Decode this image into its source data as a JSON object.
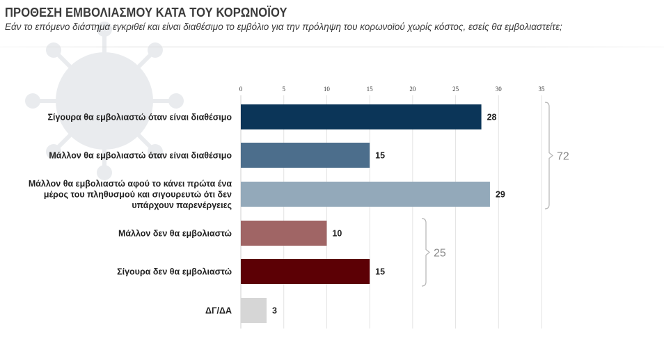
{
  "header": {
    "title": "ΠΡΟΘΕΣΗ ΕΜΒΟΛΙΑΣΜΟΥ ΚΑΤΑ ΤΟΥ ΚΟΡΩΝΟΪΟΥ",
    "subtitle": "Εάν το επόμενο διάστημα εγκριθεί και είναι διαθέσιμο το εμβόλιο για την πρόληψη του κορωνοϊού χωρίς κόστος, εσείς θα εμβολιαστείτε;"
  },
  "chart_data": {
    "type": "bar",
    "orientation": "horizontal",
    "title": "ΠΡΟΘΕΣΗ ΕΜΒΟΛΙΑΣΜΟΥ ΚΑΤΑ ΤΟΥ ΚΟΡΩΝΟΪΟΥ",
    "subtitle": "Εάν το επόμενο διάστημα εγκριθεί και είναι διαθέσιμο το εμβόλιο για την πρόληψη του κορωνοϊού χωρίς κόστος, εσείς θα εμβολιαστείτε;",
    "axis_position": "top",
    "xlim": [
      0,
      35
    ],
    "xticks": [
      0,
      5,
      10,
      15,
      20,
      25,
      30,
      35
    ],
    "grid": true,
    "categories": [
      [
        "Σίγουρα θα εμβολιαστώ όταν είναι διαθέσιμο"
      ],
      [
        "Μάλλον θα εμβολιαστώ όταν είναι διαθέσιμο"
      ],
      [
        "Μάλλον θα εμβολιαστώ αφού το κάνει πρώτα ένα",
        "μέρος του πληθυσμού και σιγουρευτώ ότι δεν",
        "υπάρχουν παρενέργειες"
      ],
      [
        "Μάλλον δεν θα εμβολιαστώ"
      ],
      [
        "Σίγουρα δεν θα εμβολιαστώ"
      ],
      [
        "ΔΓ/ΔΑ"
      ]
    ],
    "values": [
      28,
      15,
      29,
      10,
      15,
      3
    ],
    "colors": [
      "#0b3558",
      "#4c6e8c",
      "#93a9ba",
      "#a06565",
      "#5c0005",
      "#d6d6d6"
    ],
    "groups": [
      {
        "label": "72",
        "from": 0,
        "to": 2
      },
      {
        "label": "25",
        "from": 3,
        "to": 4
      }
    ]
  }
}
